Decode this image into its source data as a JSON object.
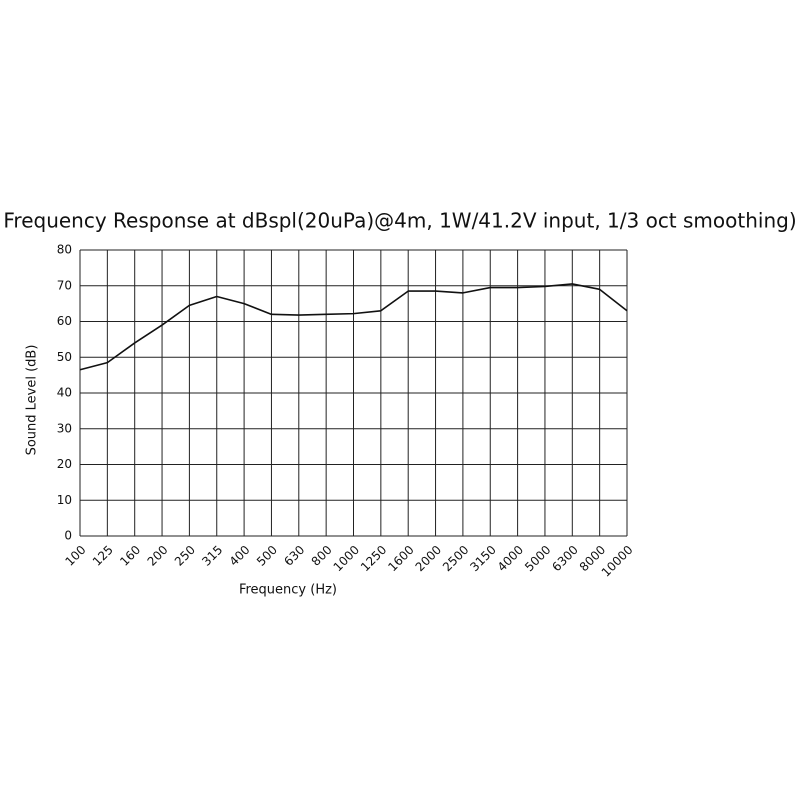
{
  "chart_data": {
    "type": "line",
    "title": "Frequency Response at dBspl(20uPa)@4m, 1W/41.2V input, 1/3 oct smoothing)",
    "x_label": "Frequency (Hz)",
    "y_label": "Sound Level (dB)",
    "categories": [
      "100",
      "125",
      "160",
      "200",
      "250",
      "315",
      "400",
      "500",
      "630",
      "800",
      "1000",
      "1250",
      "1600",
      "2000",
      "2500",
      "3150",
      "4000",
      "5000",
      "6300",
      "8000",
      "10000"
    ],
    "values": [
      46.5,
      48.5,
      54,
      59,
      64.5,
      67,
      65,
      62,
      61.8,
      62,
      62.2,
      63,
      68.5,
      68.5,
      68,
      69.5,
      69.5,
      69.8,
      70.5,
      69,
      63
    ],
    "color": "#111111",
    "ylim": [
      0,
      80
    ],
    "yticks": [
      0,
      10,
      20,
      30,
      40,
      50,
      60,
      70,
      80
    ],
    "grid": true
  }
}
